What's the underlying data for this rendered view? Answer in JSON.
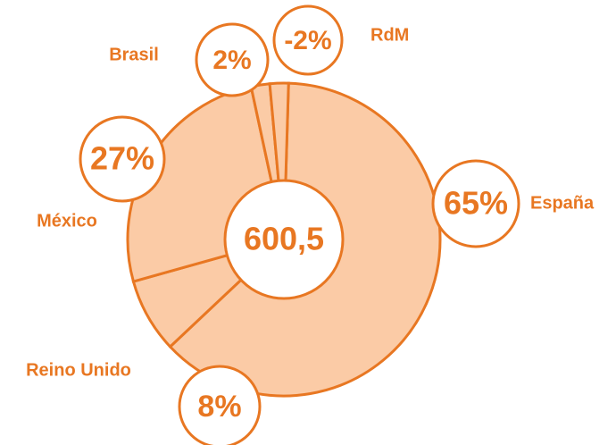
{
  "chart_data": {
    "type": "pie",
    "categories": [
      "España",
      "Reino Unido",
      "México",
      "Brasil",
      "RdM"
    ],
    "values": [
      65,
      8,
      27,
      2,
      -2
    ],
    "value_labels": [
      "65%",
      "8%",
      "27%",
      "2%",
      "-2%"
    ],
    "center_label": "600,5",
    "color": "#fbcba6",
    "edge_color": "#e87722"
  }
}
